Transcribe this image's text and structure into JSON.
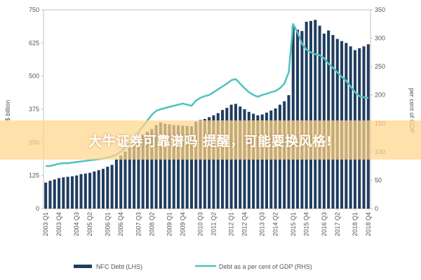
{
  "chart_data": {
    "type": "bar",
    "left_axis": {
      "label": "$ billion",
      "ylim": [
        0,
        750
      ],
      "ticks": [
        0,
        125,
        250,
        375,
        500,
        625,
        750
      ]
    },
    "right_axis": {
      "label": "per cent of GDP",
      "ylim": [
        0,
        350
      ],
      "ticks": [
        0,
        50,
        100,
        150,
        200,
        250,
        300,
        350
      ]
    },
    "x_tick_labels": [
      "2003 Q1",
      "2003 Q4",
      "2004 Q3",
      "2005 Q2",
      "2006 Q1",
      "2006 Q4",
      "2007 Q3",
      "2008 Q2",
      "2009 Q1",
      "2009 Q4",
      "2010 Q3",
      "2011 Q2",
      "2012 Q1",
      "2012 Q4",
      "2013 Q3",
      "2014 Q2",
      "2015 Q1",
      "2015 Q4",
      "2016 Q3",
      "2017 Q2",
      "2018 Q1",
      "2018 Q4"
    ],
    "series": [
      {
        "name": "NFC Debt (LHS)",
        "type": "bar",
        "axis": "left",
        "values": [
          98,
          105,
          110,
          115,
          118,
          120,
          122,
          125,
          130,
          132,
          135,
          140,
          145,
          150,
          158,
          165,
          185,
          200,
          215,
          230,
          248,
          262,
          278,
          290,
          300,
          315,
          325,
          320,
          318,
          315,
          314,
          313,
          312,
          310,
          328,
          334,
          338,
          345,
          352,
          360,
          372,
          380,
          392,
          395,
          385,
          375,
          365,
          358,
          352,
          355,
          362,
          370,
          378,
          392,
          405,
          428,
          690,
          675,
          670,
          705,
          708,
          712,
          690,
          660,
          672,
          655,
          640,
          632,
          625,
          612,
          598,
          605,
          612,
          620
        ]
      },
      {
        "name": "Debt as a per cent of GDP (RHS)",
        "type": "line",
        "axis": "right",
        "values": [
          75,
          75,
          77,
          79,
          80,
          80,
          81,
          82,
          83,
          84,
          85,
          86,
          87,
          88,
          90,
          92,
          95,
          100,
          108,
          115,
          125,
          135,
          145,
          155,
          165,
          172,
          175,
          177,
          179,
          181,
          183,
          185,
          183,
          181,
          190,
          195,
          198,
          200,
          205,
          210,
          215,
          220,
          226,
          228,
          220,
          212,
          205,
          200,
          197,
          200,
          202,
          205,
          207,
          212,
          220,
          240,
          325,
          310,
          290,
          280,
          275,
          272,
          270,
          265,
          255,
          248,
          240,
          232,
          225,
          215,
          205,
          198,
          196,
          195
        ]
      }
    ],
    "legend": {
      "position": "bottom"
    },
    "grid": false
  },
  "banner": {
    "text": "大牛证券可靠谱吗 提醒，可能要换风格!"
  }
}
